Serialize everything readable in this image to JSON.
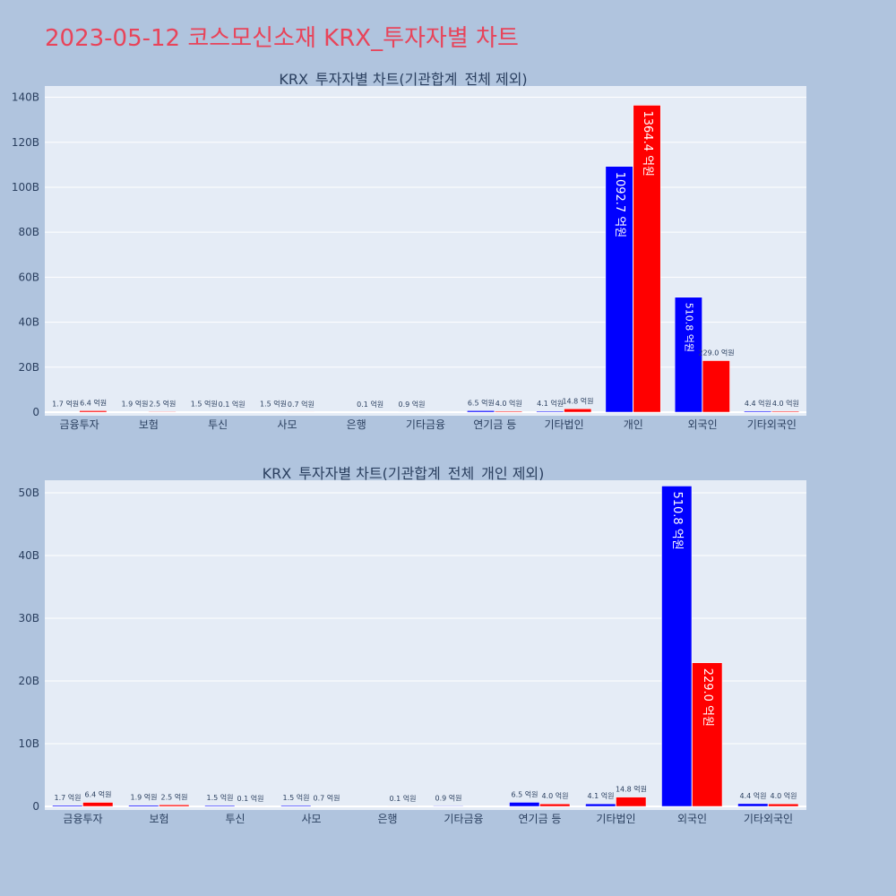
{
  "title": "2023-05-12 코스모신소재 KRX_투자자별 차트",
  "colors": {
    "background": "#b0c4de",
    "plot_bg": "#e5ecf6",
    "title": "#e8445a",
    "series_a": "#0000ff",
    "series_b": "#ff0000",
    "text": "#2a3f5f"
  },
  "chart_data": [
    {
      "type": "bar",
      "title": "KRX_투자자별 차트(기관합계_전체 제외)",
      "categories": [
        "금융투자",
        "보험",
        "투신",
        "사모",
        "은행",
        "기타금융",
        "연기금 등",
        "기타법인",
        "개인",
        "외국인",
        "기타외국인"
      ],
      "series": [
        {
          "color": "#0000ff",
          "values": [
            0.17,
            0.19,
            0.15,
            0.15,
            0,
            0.09,
            0.65,
            0.41,
            109.27,
            51.08,
            0.44
          ],
          "labels": [
            "1.7 억원",
            "1.9 억원",
            "1.5 억원",
            "1.5 억원",
            "",
            "0.9 억원",
            "6.5 억원",
            "4.1 억원",
            "1092.7 억원",
            "510.8 억원",
            "4.4 억원"
          ]
        },
        {
          "color": "#ff0000",
          "values": [
            0.64,
            0.25,
            0.01,
            0.07,
            0.01,
            0,
            0.4,
            1.48,
            136.44,
            22.9,
            0.4
          ],
          "labels": [
            "6.4 억원",
            "2.5 억원",
            "0.1 억원",
            "0.7 억원",
            "0.1 억원",
            "",
            "4.0 억원",
            "14.8 억원",
            "1364.4 억원",
            "229.0 억원",
            "4.0 억원"
          ]
        }
      ],
      "y_ticks": [
        0,
        20,
        40,
        60,
        80,
        100,
        120,
        140
      ],
      "y_tick_labels": [
        "0",
        "20B",
        "40B",
        "60B",
        "80B",
        "100B",
        "120B",
        "140B"
      ],
      "ylim": [
        0,
        145
      ],
      "grid": true
    },
    {
      "type": "bar",
      "title": "KRX_투자자별 차트(기관합계_전체_개인 제외)",
      "categories": [
        "금융투자",
        "보험",
        "투신",
        "사모",
        "은행",
        "기타금융",
        "연기금 등",
        "기타법인",
        "외국인",
        "기타외국인"
      ],
      "series": [
        {
          "color": "#0000ff",
          "values": [
            0.17,
            0.19,
            0.15,
            0.15,
            0,
            0.09,
            0.65,
            0.41,
            51.08,
            0.44
          ],
          "labels": [
            "1.7 억원",
            "1.9 억원",
            "1.5 억원",
            "1.5 억원",
            "",
            "0.9 억원",
            "6.5 억원",
            "4.1 억원",
            "510.8 억원",
            "4.4 억원"
          ]
        },
        {
          "color": "#ff0000",
          "values": [
            0.64,
            0.25,
            0.01,
            0.07,
            0.01,
            0,
            0.4,
            1.48,
            22.9,
            0.4
          ],
          "labels": [
            "6.4 억원",
            "2.5 억원",
            "0.1 억원",
            "0.7 억원",
            "0.1 억원",
            "",
            "4.0 억원",
            "14.8 억원",
            "229.0 억원",
            "4.0 억원"
          ]
        }
      ],
      "y_ticks": [
        0,
        10,
        20,
        30,
        40,
        50
      ],
      "y_tick_labels": [
        "0",
        "10B",
        "20B",
        "30B",
        "40B",
        "50B"
      ],
      "ylim": [
        0,
        52
      ],
      "grid": true
    }
  ]
}
